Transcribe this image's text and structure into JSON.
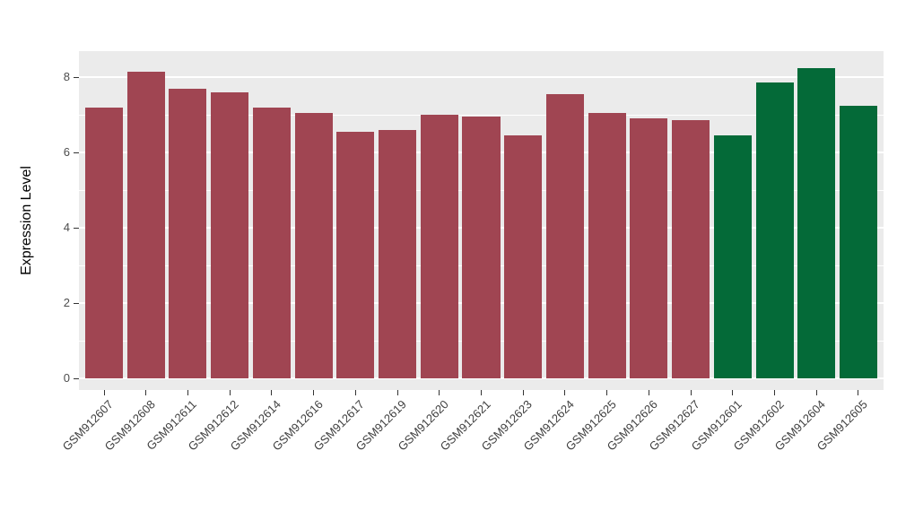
{
  "chart_data": {
    "type": "bar",
    "title": "",
    "xlabel": "",
    "ylabel": "Expression Level",
    "categories": [
      "GSM912607",
      "GSM912608",
      "GSM912611",
      "GSM912612",
      "GSM912614",
      "GSM912616",
      "GSM912617",
      "GSM912619",
      "GSM912620",
      "GSM912621",
      "GSM912623",
      "GSM912624",
      "GSM912625",
      "GSM912626",
      "GSM912627",
      "GSM912601",
      "GSM912602",
      "GSM912604",
      "GSM912605"
    ],
    "values": [
      7.2,
      8.15,
      7.7,
      7.6,
      7.2,
      7.05,
      6.55,
      6.6,
      7.0,
      6.95,
      6.45,
      7.55,
      7.05,
      6.9,
      6.85,
      6.45,
      7.85,
      8.25,
      7.25
    ],
    "bar_colors": [
      "#A04552",
      "#A04552",
      "#A04552",
      "#A04552",
      "#A04552",
      "#A04552",
      "#A04552",
      "#A04552",
      "#A04552",
      "#A04552",
      "#A04552",
      "#A04552",
      "#A04552",
      "#A04552",
      "#A04552",
      "#046A38",
      "#046A38",
      "#046A38",
      "#046A38"
    ],
    "group_colors": {
      "maroon_group": "#A04552",
      "green_group": "#046A38"
    },
    "y_ticks": [
      0,
      2,
      4,
      6,
      8
    ],
    "y_minor_ticks": [
      1,
      3,
      5,
      7
    ],
    "ylim": [
      0,
      8.7
    ],
    "panel_background": "#EBEBEB",
    "gridline_color": "#FFFFFF",
    "legend": "none",
    "grid": "on"
  }
}
